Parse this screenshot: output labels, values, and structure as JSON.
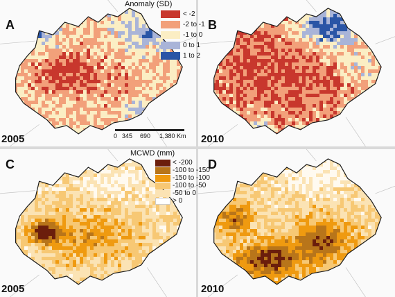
{
  "figure": {
    "panels": [
      {
        "letter": "A",
        "year": "2005",
        "variable": "anomaly"
      },
      {
        "letter": "B",
        "year": "2010",
        "variable": "anomaly"
      },
      {
        "letter": "C",
        "year": "2005",
        "variable": "mcwd"
      },
      {
        "letter": "D",
        "year": "2010",
        "variable": "mcwd"
      }
    ]
  },
  "legend_anomaly": {
    "title": "Anomaly (SD)",
    "items": [
      {
        "label": "< -2",
        "color": "#c8372d"
      },
      {
        "label": "-2 to -1",
        "color": "#f2a07a"
      },
      {
        "label": "-1 to 0",
        "color": "#fbeec4"
      },
      {
        "label": "0 to 1",
        "color": "#a9b4d8"
      },
      {
        "label": "1 to 2",
        "color": "#2a55a6"
      }
    ]
  },
  "legend_mcwd": {
    "title": "MCWD (mm)",
    "items": [
      {
        "label": "< -200",
        "color": "#6b1e0c"
      },
      {
        "label": "-100 to -150",
        "color": "#b8751a"
      },
      {
        "label": "-150 to -100",
        "color": "#ef9a10"
      },
      {
        "label": "-100 to -50",
        "color": "#f7c874"
      },
      {
        "label": "-50 to 0",
        "color": "#fbe3b4"
      },
      {
        "label": "> 0",
        "color": "#ffffff"
      }
    ]
  },
  "scale_bar": {
    "ticks": [
      "0",
      "345",
      "690",
      "1,380 Km"
    ]
  }
}
